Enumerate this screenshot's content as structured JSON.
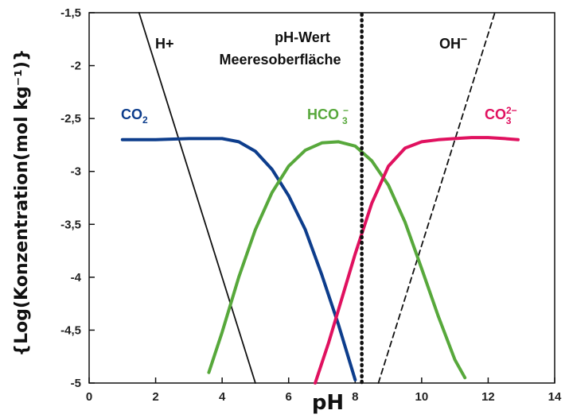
{
  "chart_data": {
    "type": "line",
    "title": "",
    "xlabel": "pH",
    "ylabel": "{Log(Konzentration(mol kg⁻¹)}",
    "xlim": [
      0,
      14
    ],
    "ylim": [
      -5,
      -1.5
    ],
    "xticks": [
      0,
      2,
      4,
      6,
      8,
      10,
      12,
      14
    ],
    "xtick_labels": [
      "0",
      "2",
      "4",
      "6",
      "8",
      "10",
      "12",
      "14"
    ],
    "yticks": [
      -1.5,
      -2,
      -2.5,
      -3,
      -3.5,
      -4,
      -4.5,
      -5
    ],
    "ytick_labels": [
      "-1,5",
      "-2",
      "-2,5",
      "-3",
      "-3,5",
      "-4",
      "-4,5",
      "-5"
    ],
    "grid": false,
    "annotations": {
      "surface_ph_line1": "pH-Wert",
      "surface_ph_line2": "Meeresoberfläche",
      "surface_ph": 8.2
    },
    "series": [
      {
        "name": "H+",
        "label": "H+",
        "label_sup": "",
        "label_sub": "",
        "color": "#111111",
        "style": "solid",
        "x": [
          1.5,
          5.0
        ],
        "y": [
          -1.5,
          -5.0
        ]
      },
      {
        "name": "OH-",
        "label": "OH",
        "label_sup": "−",
        "label_sub": "",
        "color": "#111111",
        "style": "dashed",
        "x": [
          8.7,
          12.2
        ],
        "y": [
          -5.0,
          -1.5
        ]
      },
      {
        "name": "CO2",
        "label": "CO",
        "label_sup": "",
        "label_sub": "2",
        "color": "#0d3d8c",
        "style": "solid",
        "x": [
          1.0,
          2.0,
          3.0,
          4.0,
          4.5,
          5.0,
          5.5,
          6.0,
          6.5,
          7.0,
          7.5,
          8.0
        ],
        "y": [
          -2.7,
          -2.7,
          -2.69,
          -2.69,
          -2.72,
          -2.81,
          -2.98,
          -3.23,
          -3.55,
          -3.98,
          -4.45,
          -4.97
        ]
      },
      {
        "name": "HCO3-",
        "label": "HCO ",
        "label_sup": "−",
        "label_sub": "3",
        "color": "#57a83b",
        "style": "solid",
        "x": [
          3.6,
          4.0,
          4.5,
          5.0,
          5.5,
          6.0,
          6.5,
          7.0,
          7.5,
          8.0,
          8.5,
          9.0,
          9.5,
          10.0,
          10.5,
          11.0,
          11.3
        ],
        "y": [
          -4.9,
          -4.52,
          -4.0,
          -3.55,
          -3.2,
          -2.95,
          -2.8,
          -2.73,
          -2.72,
          -2.76,
          -2.9,
          -3.13,
          -3.48,
          -3.92,
          -4.37,
          -4.78,
          -4.95
        ]
      },
      {
        "name": "CO3 2-",
        "label": "CO",
        "label_sup": "2−",
        "label_sub": "3",
        "color": "#e0115f",
        "style": "solid",
        "x": [
          6.8,
          7.2,
          7.6,
          8.0,
          8.5,
          9.0,
          9.5,
          10.0,
          10.5,
          11.0,
          11.5,
          12.0,
          12.5,
          12.9
        ],
        "y": [
          -5.0,
          -4.62,
          -4.2,
          -3.78,
          -3.3,
          -2.95,
          -2.78,
          -2.72,
          -2.7,
          -2.69,
          -2.68,
          -2.68,
          -2.69,
          -2.7
        ]
      }
    ]
  }
}
